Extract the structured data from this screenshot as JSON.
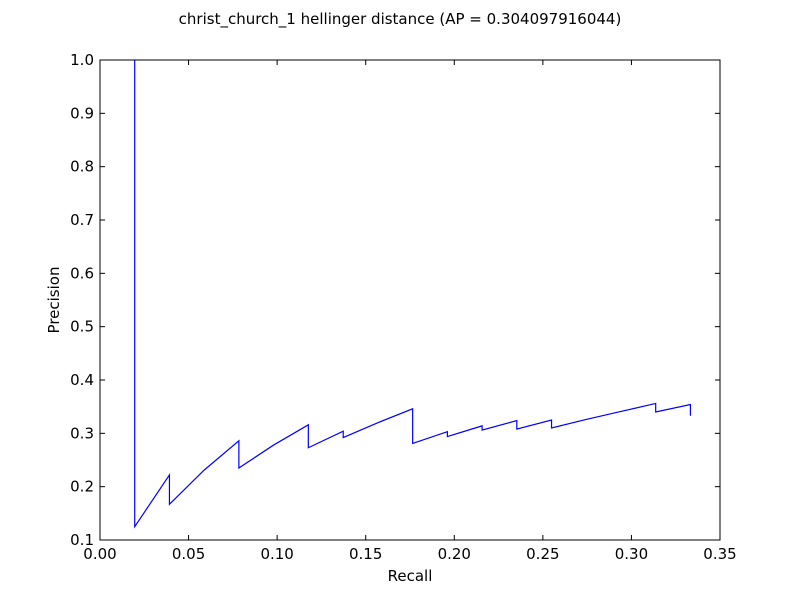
{
  "chart_data": {
    "type": "line",
    "title": "christ_church_1 hellinger distance  (AP = 0.304097916044)",
    "xlabel": "Recall",
    "ylabel": "Precision",
    "xlim": [
      0.0,
      0.35
    ],
    "ylim": [
      0.1,
      1.0
    ],
    "xticks": [
      0.0,
      0.05,
      0.1,
      0.15,
      0.2,
      0.25,
      0.3,
      0.35
    ],
    "xtick_labels": [
      "0.00",
      "0.05",
      "0.10",
      "0.15",
      "0.20",
      "0.25",
      "0.30",
      "0.35"
    ],
    "yticks": [
      0.1,
      0.2,
      0.3,
      0.4,
      0.5,
      0.6,
      0.7,
      0.8,
      0.9,
      1.0
    ],
    "ytick_labels": [
      "0.1",
      "0.2",
      "0.3",
      "0.4",
      "0.5",
      "0.6",
      "0.7",
      "0.8",
      "0.9",
      "1.0"
    ],
    "grid": false,
    "legend": "none",
    "series": [
      {
        "color": "#0000ff",
        "x": [
          0.0196,
          0.0196,
          0.0392,
          0.0392,
          0.0588,
          0.0784,
          0.0784,
          0.098,
          0.1176,
          0.1176,
          0.1373,
          0.1373,
          0.1569,
          0.1765,
          0.1765,
          0.1961,
          0.1961,
          0.2157,
          0.2157,
          0.2353,
          0.2353,
          0.2549,
          0.2549,
          0.2745,
          0.2941,
          0.3137,
          0.3137,
          0.3333,
          0.3333
        ],
        "y": [
          1.0,
          0.125,
          0.222,
          0.167,
          0.231,
          0.286,
          0.235,
          0.278,
          0.316,
          0.273,
          0.304,
          0.292,
          0.32,
          0.346,
          0.281,
          0.303,
          0.294,
          0.314,
          0.306,
          0.324,
          0.308,
          0.325,
          0.31,
          0.326,
          0.341,
          0.356,
          0.34,
          0.354,
          0.333
        ]
      }
    ]
  }
}
